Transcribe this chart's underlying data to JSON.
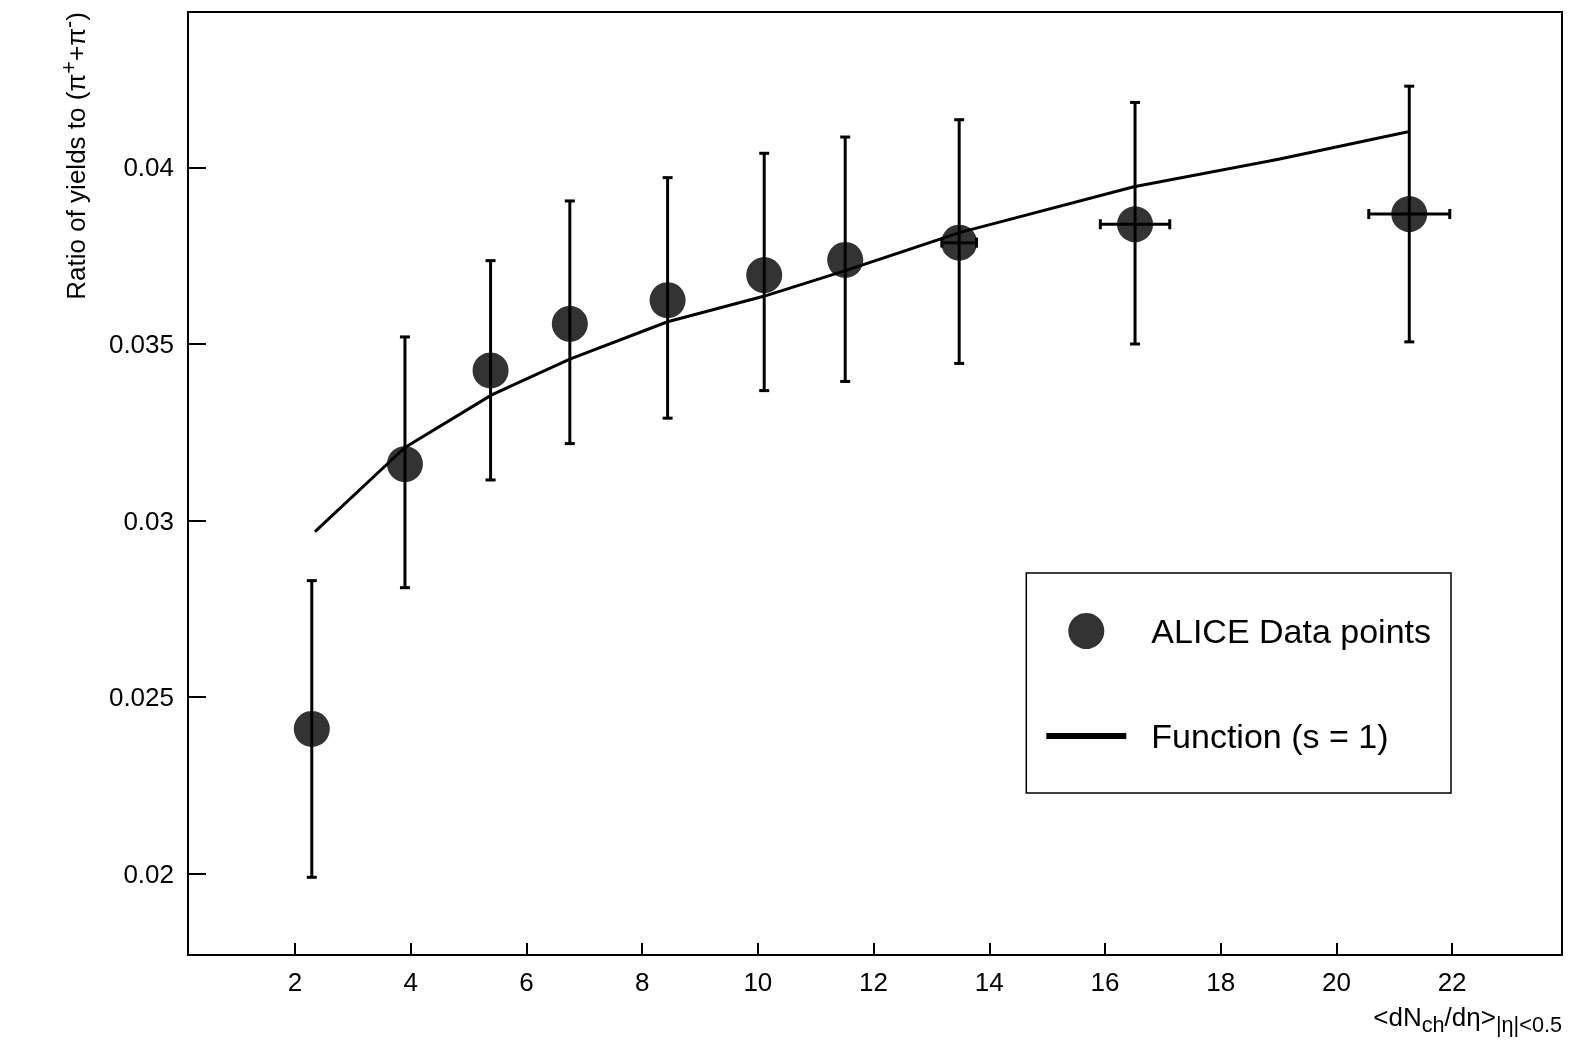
{
  "chart_data": {
    "type": "scatter",
    "xlabel": "<dN$_{ch}$/dη>$_{|η|<0.5}$",
    "ylabel": "Ratio of yields to (π$^{+}$+π$^{-}$)",
    "xlim": [
      0.15,
      23.9
    ],
    "xticks": [
      2,
      4,
      6,
      8,
      10,
      12,
      14,
      16,
      18,
      20,
      22
    ],
    "ylim": [
      0.0177,
      0.0444
    ],
    "yticks": [
      0.02,
      0.025,
      0.03,
      0.035,
      0.04
    ],
    "grid": false,
    "legend": "bottom right",
    "marker": "circle",
    "x": [
      2.29,
      3.9,
      5.38,
      6.75,
      8.44,
      10.11,
      11.51,
      13.48,
      16.52,
      21.26
    ],
    "series": [
      {
        "name": "ALICE Data points",
        "color": "#000000",
        "values": [
          0.0241,
          0.0316,
          0.03425,
          0.03557,
          0.03624,
          0.03695,
          0.03738,
          0.03787,
          0.03839,
          0.03868
        ],
        "errors": [
          [
            0.0199,
            0.0283
          ],
          [
            0.0281,
            0.0352
          ],
          [
            0.03115,
            0.03736
          ],
          [
            0.03218,
            0.03905
          ],
          [
            0.0329,
            0.03971
          ],
          [
            0.03368,
            0.0404
          ],
          [
            0.03394,
            0.04086
          ],
          [
            0.03445,
            0.04135
          ],
          [
            0.035,
            0.04184
          ],
          [
            0.03506,
            0.0423
          ]
        ],
        "xerrors": [
          null,
          null,
          null,
          null,
          null,
          null,
          null,
          0.3,
          0.6,
          0.7
        ]
      },
      {
        "name": "Function (s = 1)",
        "type": "line",
        "color": "#000000",
        "marker": "none",
        "line_style": "solid",
        "x": [
          2.36,
          3.9,
          5.4,
          6.75,
          8.44,
          10.1,
          11.5,
          13.5,
          16.5,
          19,
          21.22
        ],
        "values": [
          0.02971,
          0.03207,
          0.03356,
          0.03457,
          0.03563,
          0.03635,
          0.03707,
          0.03816,
          0.03945,
          0.04023,
          0.041
        ]
      }
    ]
  }
}
